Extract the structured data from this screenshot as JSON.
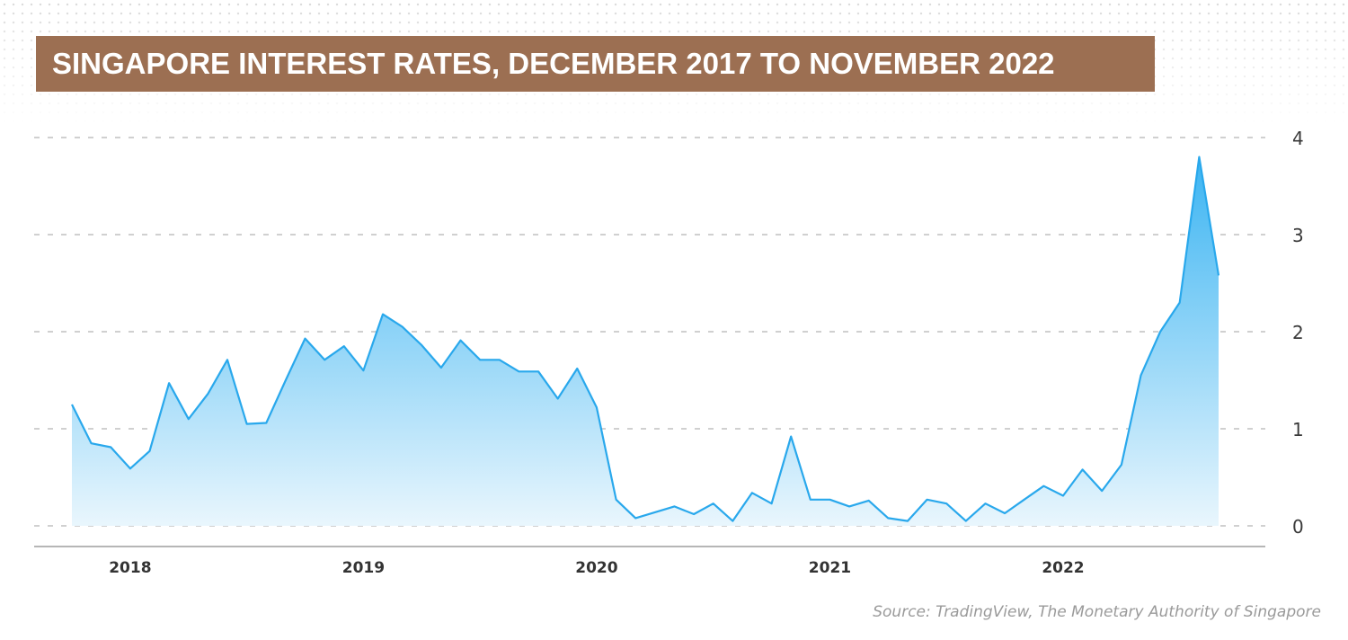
{
  "title": "SINGAPORE INTEREST RATES, DECEMBER 2017 TO NOVEMBER 2022",
  "source": "Source: TradingView, The Monetary Authority of Singapore",
  "colors": {
    "title_bg": "#9c6f52",
    "line": "#29a8ec",
    "fill_top": "#3bb4f2",
    "fill_bottom": "#e9f6fd"
  },
  "chart_data": {
    "type": "area",
    "title": "SINGAPORE INTEREST RATES, DECEMBER 2017 TO NOVEMBER 2022",
    "xlabel": "",
    "ylabel": "",
    "ylim": [
      0,
      4
    ],
    "y_ticks": [
      0,
      1,
      2,
      3,
      4
    ],
    "x_ticks": [
      "2018",
      "2019",
      "2020",
      "2021",
      "2022"
    ],
    "x_tick_positions": [
      "2018-03",
      "2019-03",
      "2020-03",
      "2021-03",
      "2022-03"
    ],
    "y_axis_side": "right",
    "grid": true,
    "series": [
      {
        "x": [
          "2017-12",
          "2018-01",
          "2018-02",
          "2018-03",
          "2018-04",
          "2018-05",
          "2018-06",
          "2018-07",
          "2018-08",
          "2018-09",
          "2018-10",
          "2018-11",
          "2018-12",
          "2019-01",
          "2019-02",
          "2019-03",
          "2019-04",
          "2019-05",
          "2019-06",
          "2019-07",
          "2019-08",
          "2019-09",
          "2019-10",
          "2019-11",
          "2019-12",
          "2020-01",
          "2020-02",
          "2020-03",
          "2020-04",
          "2020-05",
          "2020-06",
          "2020-07",
          "2020-08",
          "2020-09",
          "2020-10",
          "2020-11",
          "2020-12",
          "2021-01",
          "2021-02",
          "2021-03",
          "2021-04",
          "2021-05",
          "2021-06",
          "2021-07",
          "2021-08",
          "2021-09",
          "2021-10",
          "2021-11",
          "2021-12",
          "2022-01",
          "2022-02",
          "2022-03",
          "2022-04",
          "2022-05",
          "2022-06",
          "2022-07",
          "2022-08",
          "2022-09",
          "2022-10",
          "2022-11"
        ],
        "values": [
          1.25,
          0.85,
          0.81,
          0.59,
          0.77,
          1.47,
          1.1,
          1.36,
          1.71,
          1.05,
          1.06,
          1.5,
          1.93,
          1.71,
          1.85,
          1.6,
          2.18,
          2.05,
          1.86,
          1.63,
          1.91,
          1.71,
          1.71,
          1.59,
          1.59,
          1.31,
          1.62,
          1.22,
          0.27,
          0.08,
          0.14,
          0.2,
          0.12,
          0.23,
          0.05,
          0.34,
          0.23,
          0.92,
          0.27,
          0.27,
          0.2,
          0.26,
          0.08,
          0.05,
          0.27,
          0.23,
          0.05,
          0.23,
          0.13,
          0.27,
          0.41,
          0.31,
          0.58,
          0.36,
          0.63,
          1.55,
          2.0,
          2.3,
          3.8,
          2.58
        ]
      }
    ]
  }
}
